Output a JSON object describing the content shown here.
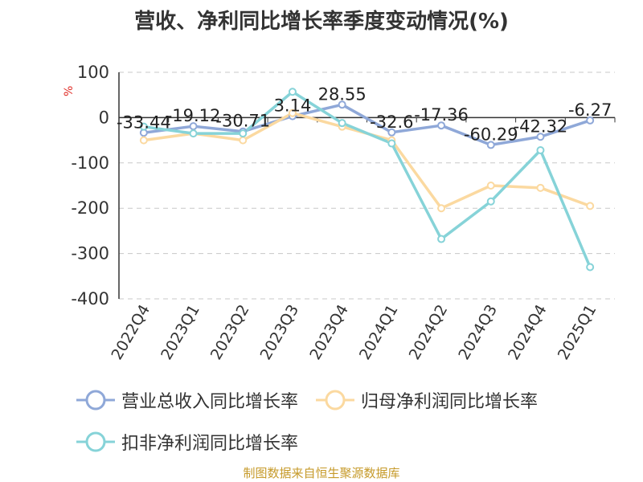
{
  "chart_data": {
    "type": "line",
    "title": "营收、净利同比增长率季度变动情况(%)",
    "ylabel": "%",
    "categories": [
      "2022Q4",
      "2023Q1",
      "2023Q2",
      "2023Q3",
      "2023Q4",
      "2024Q1",
      "2024Q2",
      "2024Q3",
      "2024Q4",
      "2025Q1"
    ],
    "ylim": [
      -400,
      100
    ],
    "yticks": [
      100,
      0,
      -100,
      -200,
      -300,
      -400
    ],
    "grid": true,
    "legend_position": "bottom",
    "series": [
      {
        "name": "营业总收入同比增长率",
        "color": "#8fa8d8",
        "values": [
          -33.44,
          -19.12,
          -30.71,
          3.14,
          28.55,
          -32.6,
          -17.36,
          -60.29,
          -42.32,
          -6.27
        ],
        "labels": [
          "-33.44",
          "-19.12",
          "-30.71",
          "3.14",
          "28.55",
          "-32.6",
          "-17.36",
          "-60.29",
          "-42.32",
          "-6.27"
        ]
      },
      {
        "name": "归母净利润同比增长率",
        "color": "#fbd9a0",
        "values": [
          -50,
          -35,
          -50,
          10,
          -20,
          -50,
          -200,
          -150,
          -155,
          -195
        ]
      },
      {
        "name": "扣非净利润同比增长率",
        "color": "#86d3d8",
        "values": [
          -20,
          -35,
          -35,
          57,
          -12,
          -57,
          -268,
          -185,
          -72,
          -330
        ]
      }
    ]
  },
  "source_text": "制图数据来自恒生聚源数据库"
}
